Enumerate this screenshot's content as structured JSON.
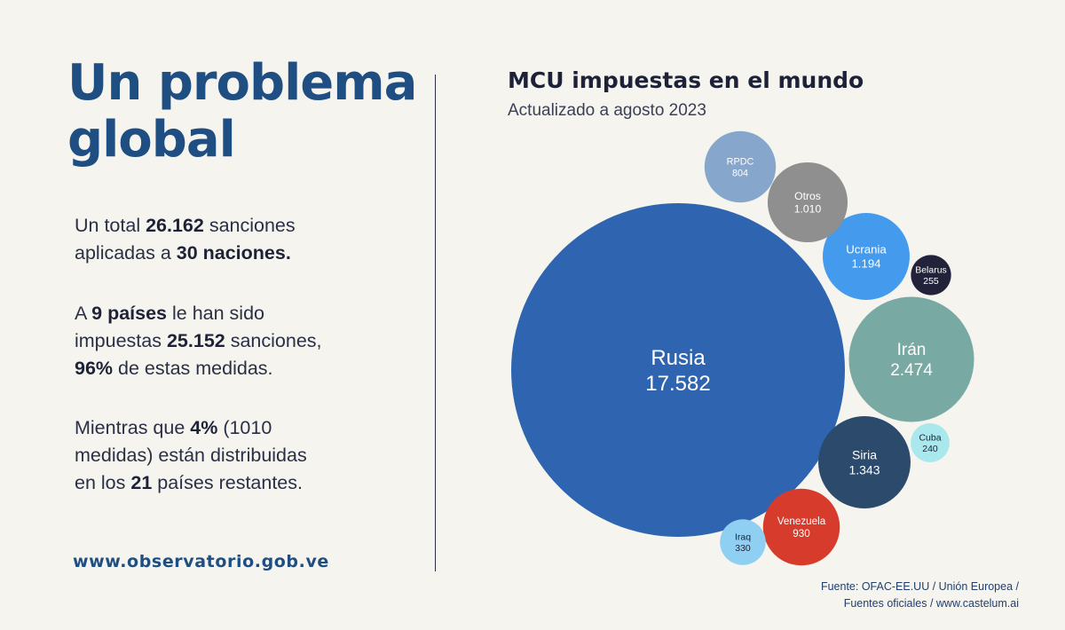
{
  "headline": {
    "line1": "Un problema",
    "line2": "global"
  },
  "paragraphs": {
    "p1": {
      "a": "Un total ",
      "b1": "26.162",
      "c": " sanciones",
      "d": "aplicadas a ",
      "b2": "30 naciones."
    },
    "p2": {
      "a": "A ",
      "b1": "9 países",
      "c": " le han sido",
      "d": "impuestas ",
      "b2": "25.152",
      "e": " sanciones,",
      "b3": "96%",
      "f": " de estas medidas."
    },
    "p3": {
      "a": "Mientras que ",
      "b1": "4%",
      "c": " (1010",
      "d": "medidas) están distribuidas",
      "e": "en los ",
      "b2": "21",
      "f": " países restantes."
    }
  },
  "website": "www.observatorio.gob.ve",
  "source": {
    "line1": "Fuente: OFAC-EE.UU / Unión Europea /",
    "line2": "Fuentes oficiales / www.castelum.ai"
  },
  "chart_data": {
    "type": "bubble",
    "title": "MCU impuestas en el mundo",
    "subtitle": "Actualizado a agosto 2023",
    "series": [
      {
        "name": "Russia",
        "label": "Rusia",
        "display": "17.582",
        "value": 17582,
        "color": "#2f65b0"
      },
      {
        "name": "Iran",
        "label": "Irán",
        "display": "2.474",
        "value": 2474,
        "color": "#78aaa3"
      },
      {
        "name": "Siria",
        "label": "Siria",
        "display": "1.343",
        "value": 1343,
        "color": "#2c4a6b"
      },
      {
        "name": "Ucrania",
        "label": "Ucrania",
        "display": "1.194",
        "value": 1194,
        "color": "#449bed"
      },
      {
        "name": "Otros",
        "label": "Otros",
        "display": "1.010",
        "value": 1010,
        "color": "#8f8f8f"
      },
      {
        "name": "Venezuela",
        "label": "Venezuela",
        "display": "930",
        "value": 930,
        "color": "#d63b2c"
      },
      {
        "name": "RPDC",
        "label": "RPDC",
        "display": "804",
        "value": 804,
        "color": "#87a6cc"
      },
      {
        "name": "Iraq",
        "label": "Iraq",
        "display": "330",
        "value": 330,
        "color": "#8fd0f2"
      },
      {
        "name": "Belarus",
        "label": "Belarus",
        "display": "255",
        "value": 255,
        "color": "#22223a"
      },
      {
        "name": "Cuba",
        "label": "Cuba",
        "display": "240",
        "value": 240,
        "color": "#a9e8ec"
      }
    ]
  }
}
